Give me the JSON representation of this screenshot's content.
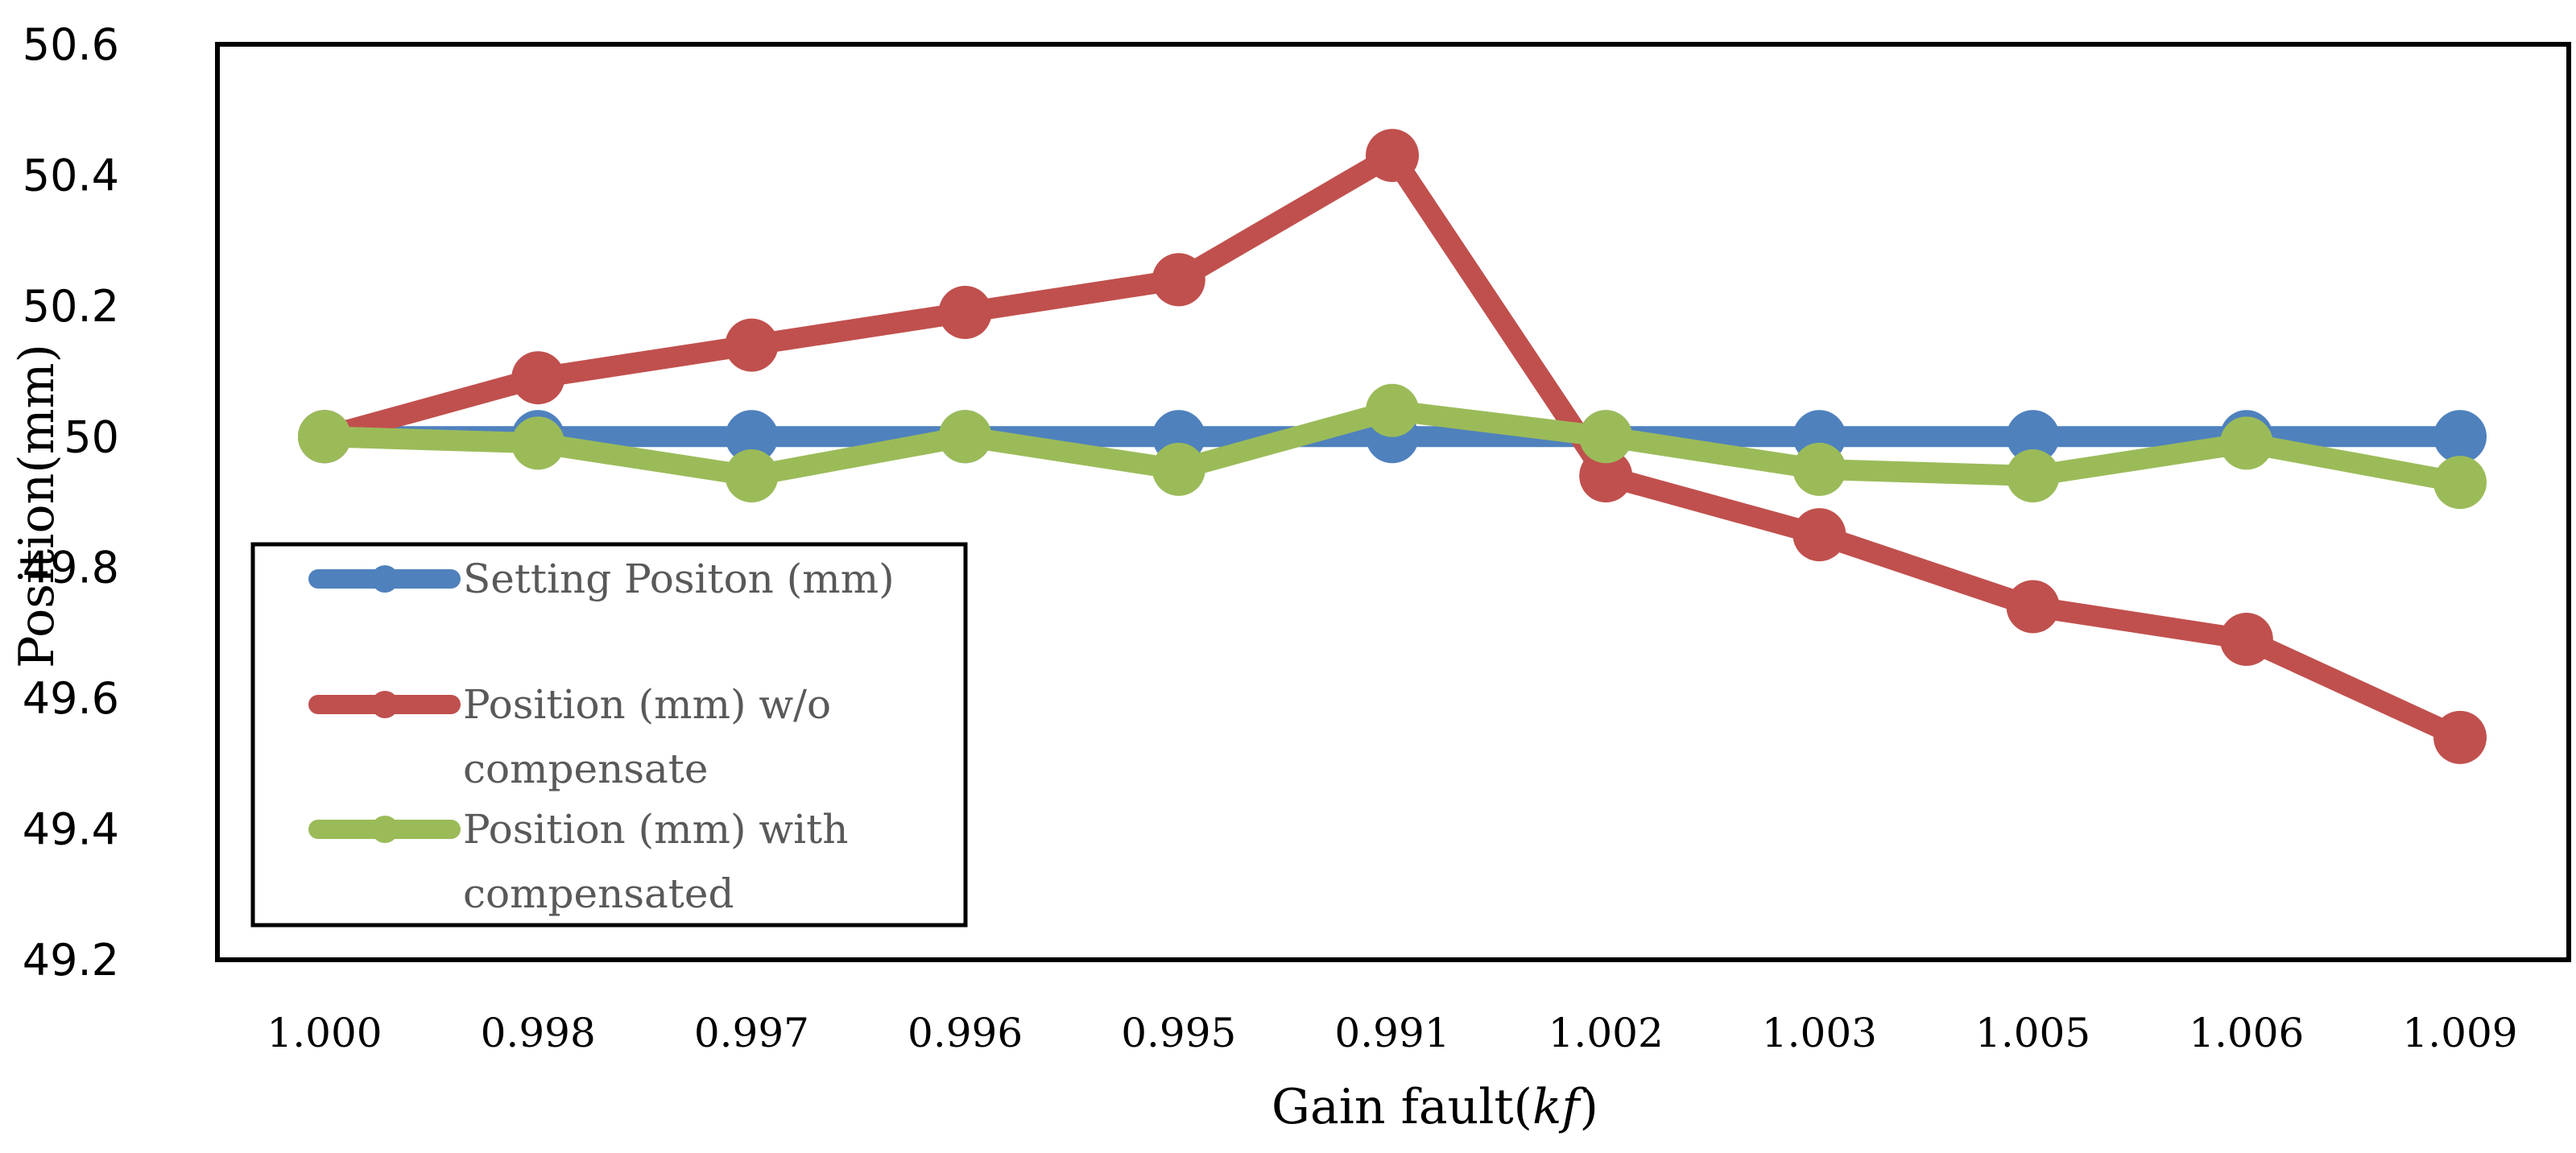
{
  "chart_data": {
    "type": "line",
    "title": "",
    "xlabel": "Gain fault(",
    "xlabel_italic": "kf",
    "xlabel_suffix": ")",
    "ylabel": "Position(mm)",
    "categories": [
      "1.000",
      "0.998",
      "0.997",
      "0.996",
      "0.995",
      "0.991",
      "1.002",
      "1.003",
      "1.005",
      "1.006",
      "1.009"
    ],
    "ylim": [
      49.2,
      50.6
    ],
    "yticks": [
      "49.2",
      "49.4",
      "49.6",
      "49.8",
      "50",
      "50.2",
      "50.4",
      "50.6"
    ],
    "legend_position": "left",
    "series": [
      {
        "name": "Setting Positon (mm)",
        "name_lines": [
          "Setting Positon (mm)"
        ],
        "color": "#4f81bd",
        "values": [
          50,
          50,
          50,
          50,
          50,
          50,
          50,
          50,
          50,
          50,
          50
        ]
      },
      {
        "name": "Position (mm) w/o compensate",
        "name_lines": [
          "Position (mm) w/o",
          "compensate"
        ],
        "color": "#c0504d",
        "values": [
          50.0,
          50.09,
          50.14,
          50.19,
          50.24,
          50.43,
          49.94,
          49.85,
          49.74,
          49.69,
          49.54
        ]
      },
      {
        "name": "Position (mm) with compensated",
        "name_lines": [
          "Position (mm) with",
          "compensated"
        ],
        "color": "#9bbb59",
        "values": [
          50.0,
          49.99,
          49.94,
          50.0,
          49.95,
          50.04,
          50.0,
          49.95,
          49.94,
          49.99,
          49.93
        ]
      }
    ]
  }
}
